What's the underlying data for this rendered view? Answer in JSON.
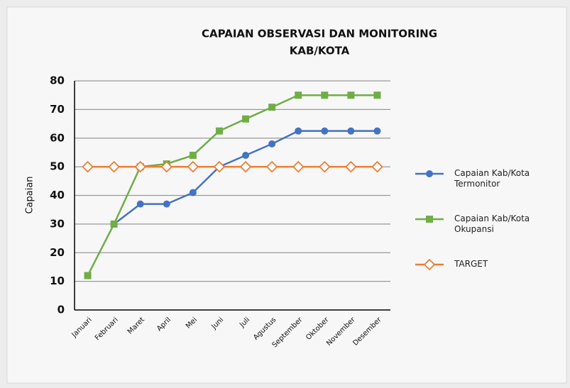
{
  "chart_data": {
    "type": "line",
    "title": [
      "CAPAIAN OBSERVASI DAN MONITORING",
      "KAB/KOTA"
    ],
    "y_label": "Capaian",
    "categories": [
      "Januari",
      "Februari",
      "Maret",
      "April",
      "Mei",
      "Juni",
      "Juli",
      "Agustus",
      "September",
      "Oktober",
      "November",
      "Desember"
    ],
    "series": [
      {
        "name": "Capaian Kab/Kota Termonitor",
        "color": "#4472c4",
        "marker": "circle",
        "values": [
          null,
          30,
          37,
          37,
          41,
          50,
          54,
          58,
          62.5,
          62.5,
          62.5,
          62.5
        ]
      },
      {
        "name": "Capaian Kab/Kota Okupansi",
        "color": "#70ad47",
        "marker": "square",
        "values": [
          12,
          30,
          50,
          51,
          54,
          62.5,
          66.7,
          70.8,
          75,
          75,
          75,
          75
        ]
      },
      {
        "name": "TARGET",
        "color": "#ed7d31",
        "marker": "diamond",
        "values": [
          50,
          50,
          50,
          50,
          50,
          50,
          50,
          50,
          50,
          50,
          50,
          50
        ]
      }
    ],
    "ylim": [
      0,
      80
    ],
    "yticks": [
      0,
      10,
      20,
      30,
      40,
      50,
      60,
      70,
      80
    ],
    "grid": true,
    "legend": "right"
  }
}
